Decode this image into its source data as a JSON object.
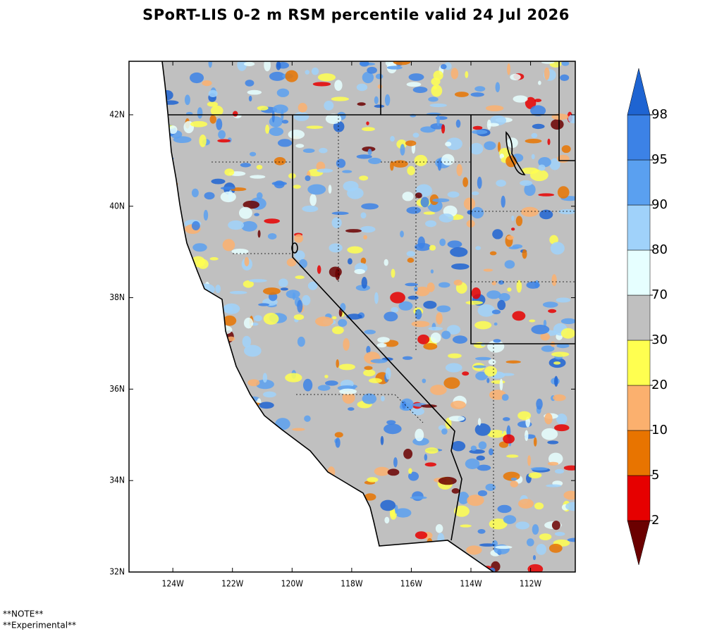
{
  "title": "SPoRT-LIS 0-2 m RSM percentile valid 24 Jul 2026",
  "map": {
    "lonlim": [
      -125.47,
      -110.5
    ],
    "latlim": [
      32,
      43.17
    ],
    "lon_ticks": [
      {
        "value": -124,
        "label": "124W"
      },
      {
        "value": -122,
        "label": "122W"
      },
      {
        "value": -120,
        "label": "120W"
      },
      {
        "value": -118,
        "label": "118W"
      },
      {
        "value": -116,
        "label": "116W"
      },
      {
        "value": -114,
        "label": "114W"
      },
      {
        "value": -112,
        "label": "112W"
      }
    ],
    "lat_ticks": [
      {
        "value": 32,
        "label": "32N"
      },
      {
        "value": 34,
        "label": "34N"
      },
      {
        "value": 36,
        "label": "36N"
      },
      {
        "value": 38,
        "label": "38N"
      },
      {
        "value": 40,
        "label": "40N"
      },
      {
        "value": 42,
        "label": "42N"
      }
    ]
  },
  "colorbar": {
    "levels": [
      2,
      5,
      10,
      20,
      30,
      70,
      80,
      90,
      95,
      98
    ],
    "colors": [
      "#6b0000",
      "#e60000",
      "#e87400",
      "#fbb06e",
      "#ffff50",
      "#c0c0c0",
      "#e6ffff",
      "#a0d2fa",
      "#5aa0f0",
      "#3c82e6",
      "#1e64d2"
    ]
  },
  "notes": [
    "**NOTE**",
    "**Experimental**"
  ]
}
